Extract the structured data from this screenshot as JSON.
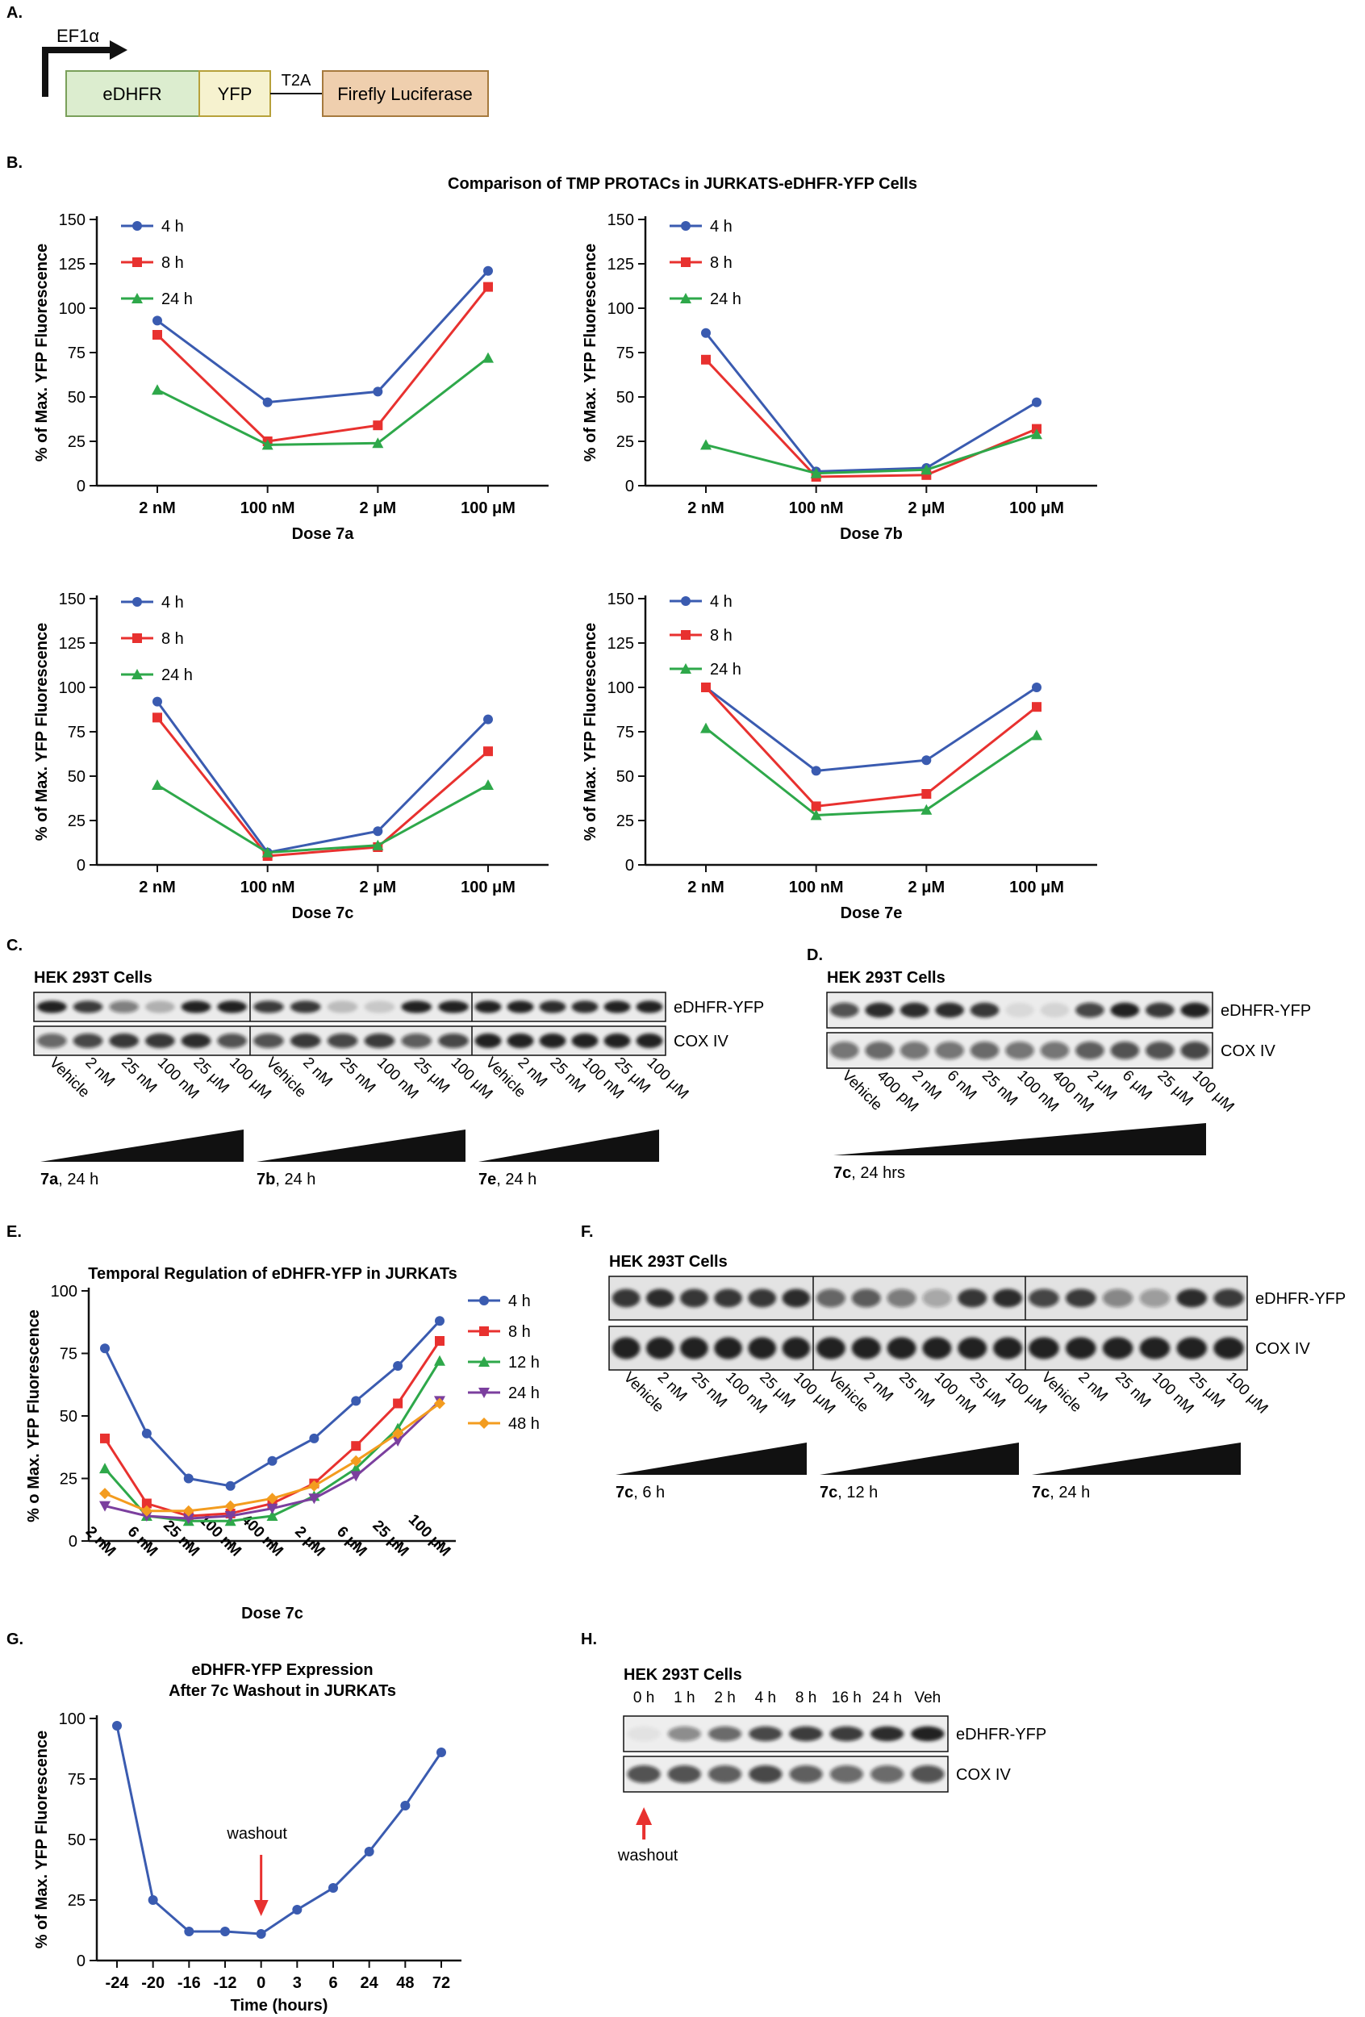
{
  "panels": {
    "A": "A.",
    "B": "B.",
    "C": "C.",
    "D": "D.",
    "E": "E.",
    "F": "F.",
    "G": "G.",
    "H": "H."
  },
  "construct": {
    "promoter": "EF1α",
    "boxes": [
      "eDHFR",
      "YFP",
      "Firefly Luciferase"
    ],
    "linker": "T2A",
    "colors": {
      "edhfr": "#dcedcf",
      "yfp": "#f6f2cf",
      "luc": "#efcfae"
    }
  },
  "panelB": {
    "title": "Comparison of TMP PROTACs in JURKATS-eDHFR-YFP Cells"
  },
  "blots": {
    "C": {
      "cell_line": "HEK 293T Cells",
      "bands": [
        "eDHFR-YFP",
        "COX IV"
      ],
      "groups": [
        {
          "compound": "7a",
          "time": ", 24 h",
          "lanes": [
            "Vehicle",
            "2 nM",
            "25 nM",
            "100 nM",
            "25 μM",
            "100 μM"
          ]
        },
        {
          "compound": "7b",
          "time": ", 24 h",
          "lanes": [
            "Vehicle",
            "2 nM",
            "25 nM",
            "100 nM",
            "25 μM",
            "100 μM"
          ]
        },
        {
          "compound": "7e",
          "time": ", 24 h",
          "lanes": [
            "Vehicle",
            "2 nM",
            "25 nM",
            "100 nM",
            "25 μM",
            "100 μM"
          ]
        }
      ]
    },
    "D": {
      "cell_line": "HEK 293T Cells",
      "bands": [
        "eDHFR-YFP",
        "COX IV"
      ],
      "compound": "7c",
      "time": ", 24 hrs",
      "lanes": [
        "Vehicle",
        "400 pM",
        "2 nM",
        "6 nM",
        "25 nM",
        "100 nM",
        "400 nM",
        "2 μM",
        "6 μM",
        "25 μM",
        "100 μM"
      ]
    },
    "F": {
      "cell_line": "HEK 293T Cells",
      "bands": [
        "eDHFR-YFP",
        "COX IV"
      ],
      "groups": [
        {
          "compound": "7c",
          "time": ", 6 h",
          "lanes": [
            "Vehicle",
            "2 nM",
            "25 nM",
            "100 nM",
            "25 μM",
            "100 μM"
          ]
        },
        {
          "compound": "7c",
          "time": ", 12 h",
          "lanes": [
            "Vehicle",
            "2 nM",
            "25 nM",
            "100 nM",
            "25 μM",
            "100 μM"
          ]
        },
        {
          "compound": "7c",
          "time": ", 24 h",
          "lanes": [
            "Vehicle",
            "2 nM",
            "25 nM",
            "100 nM",
            "25 μM",
            "100 μM"
          ]
        }
      ]
    },
    "H": {
      "cell_line": "HEK 293T Cells",
      "bands": [
        "eDHFR-YFP",
        "COX IV"
      ],
      "lanes": [
        "0 h",
        "1 h",
        "2 h",
        "4 h",
        "8 h",
        "16 h",
        "24 h",
        "Veh"
      ],
      "arrow_label": "washout"
    }
  },
  "chart_data": [
    {
      "id": "B1",
      "type": "line",
      "title": "",
      "categories": [
        "2 nM",
        "100 nM",
        "2 μM",
        "100 μM"
      ],
      "xlabel": "Dose 7a",
      "ylabel": "% of Max. YFP Fluorescence",
      "ylim": [
        0,
        150
      ],
      "yticks": [
        0,
        25,
        50,
        75,
        100,
        125,
        150
      ],
      "series": [
        {
          "name": "4 h",
          "color": "#3a5bb0",
          "marker": "circle",
          "values": [
            93,
            47,
            53,
            121
          ]
        },
        {
          "name": "8 h",
          "color": "#e8312f",
          "marker": "square",
          "values": [
            85,
            25,
            34,
            112
          ]
        },
        {
          "name": "24 h",
          "color": "#2ea84a",
          "marker": "triangle",
          "values": [
            54,
            23,
            24,
            72
          ]
        }
      ]
    },
    {
      "id": "B2",
      "type": "line",
      "title": "",
      "categories": [
        "2 nM",
        "100 nM",
        "2 μM",
        "100 μM"
      ],
      "xlabel": "Dose 7b",
      "ylabel": "% of Max. YFP Fluorescence",
      "ylim": [
        0,
        150
      ],
      "yticks": [
        0,
        25,
        50,
        75,
        100,
        125,
        150
      ],
      "series": [
        {
          "name": "4 h",
          "color": "#3a5bb0",
          "marker": "circle",
          "values": [
            86,
            8,
            10,
            47
          ]
        },
        {
          "name": "8 h",
          "color": "#e8312f",
          "marker": "square",
          "values": [
            71,
            5,
            6,
            32
          ]
        },
        {
          "name": "24 h",
          "color": "#2ea84a",
          "marker": "triangle",
          "values": [
            23,
            7,
            9,
            29
          ]
        }
      ]
    },
    {
      "id": "B3",
      "type": "line",
      "title": "",
      "categories": [
        "2 nM",
        "100 nM",
        "2 μM",
        "100 μM"
      ],
      "xlabel": "Dose 7c",
      "ylabel": "% of Max. YFP Fluorescence",
      "ylim": [
        0,
        150
      ],
      "yticks": [
        0,
        25,
        50,
        75,
        100,
        125,
        150
      ],
      "series": [
        {
          "name": "4 h",
          "color": "#3a5bb0",
          "marker": "circle",
          "values": [
            92,
            7,
            19,
            82
          ]
        },
        {
          "name": "8 h",
          "color": "#e8312f",
          "marker": "square",
          "values": [
            83,
            5,
            10,
            64
          ]
        },
        {
          "name": "24 h",
          "color": "#2ea84a",
          "marker": "triangle",
          "values": [
            45,
            7,
            11,
            45
          ]
        }
      ]
    },
    {
      "id": "B4",
      "type": "line",
      "title": "",
      "categories": [
        "2 nM",
        "100 nM",
        "2 μM",
        "100 μM"
      ],
      "xlabel": "Dose 7e",
      "ylabel": "% of Max. YFP Fluorescence",
      "ylim": [
        0,
        150
      ],
      "yticks": [
        0,
        25,
        50,
        75,
        100,
        125,
        150
      ],
      "series": [
        {
          "name": "4 h",
          "color": "#3a5bb0",
          "marker": "circle",
          "values": [
            100,
            53,
            59,
            100
          ]
        },
        {
          "name": "8 h",
          "color": "#e8312f",
          "marker": "square",
          "values": [
            100,
            33,
            40,
            89
          ]
        },
        {
          "name": "24 h",
          "color": "#2ea84a",
          "marker": "triangle",
          "values": [
            77,
            28,
            31,
            73
          ]
        }
      ]
    },
    {
      "id": "E",
      "type": "line",
      "title": "Temporal Regulation of eDHFR-YFP in JURKATs",
      "categories": [
        "2 nM",
        "6 nM",
        "25 nM",
        "100 nM",
        "400 nM",
        "2 μM",
        "6 μM",
        "25 μM",
        "100 μM"
      ],
      "xlabel": "Dose 7c",
      "ylabel": "% o Max. YFP Fluorescence",
      "ylim": [
        0,
        100
      ],
      "yticks": [
        0,
        25,
        50,
        75,
        100
      ],
      "series": [
        {
          "name": "4 h",
          "color": "#3a5bb0",
          "marker": "circle",
          "values": [
            77,
            43,
            25,
            22,
            32,
            41,
            56,
            70,
            88
          ]
        },
        {
          "name": "8 h",
          "color": "#e8312f",
          "marker": "square",
          "values": [
            41,
            15,
            10,
            11,
            15,
            23,
            38,
            55,
            80
          ]
        },
        {
          "name": "12 h",
          "color": "#2ea84a",
          "marker": "triangle",
          "values": [
            29,
            10,
            8,
            8,
            10,
            18,
            29,
            45,
            72
          ]
        },
        {
          "name": "24 h",
          "color": "#7b3f9e",
          "marker": "triangle-down",
          "values": [
            14,
            10,
            9,
            10,
            13,
            17,
            26,
            40,
            56
          ]
        },
        {
          "name": "48 h",
          "color": "#f39c1f",
          "marker": "diamond",
          "values": [
            19,
            12,
            12,
            14,
            17,
            22,
            32,
            43,
            55
          ]
        }
      ]
    },
    {
      "id": "G",
      "type": "line",
      "title": [
        "eDHFR-YFP Expression",
        "After 7c Washout in JURKATs"
      ],
      "categories": [
        "-24",
        "-20",
        "-16",
        "-12",
        "0",
        "3",
        "6",
        "24",
        "48",
        "72"
      ],
      "xlabel": "Time (hours)",
      "ylabel": "% of Max. YFP Fluorescence",
      "ylim": [
        0,
        100
      ],
      "yticks": [
        0,
        25,
        50,
        75,
        100
      ],
      "annotation": {
        "text": "washout",
        "at_category": "0"
      },
      "series": [
        {
          "name": "washout",
          "color": "#3a5bb0",
          "marker": "circle",
          "values": [
            97,
            25,
            12,
            12,
            11,
            21,
            30,
            45,
            64,
            86
          ]
        }
      ]
    }
  ]
}
